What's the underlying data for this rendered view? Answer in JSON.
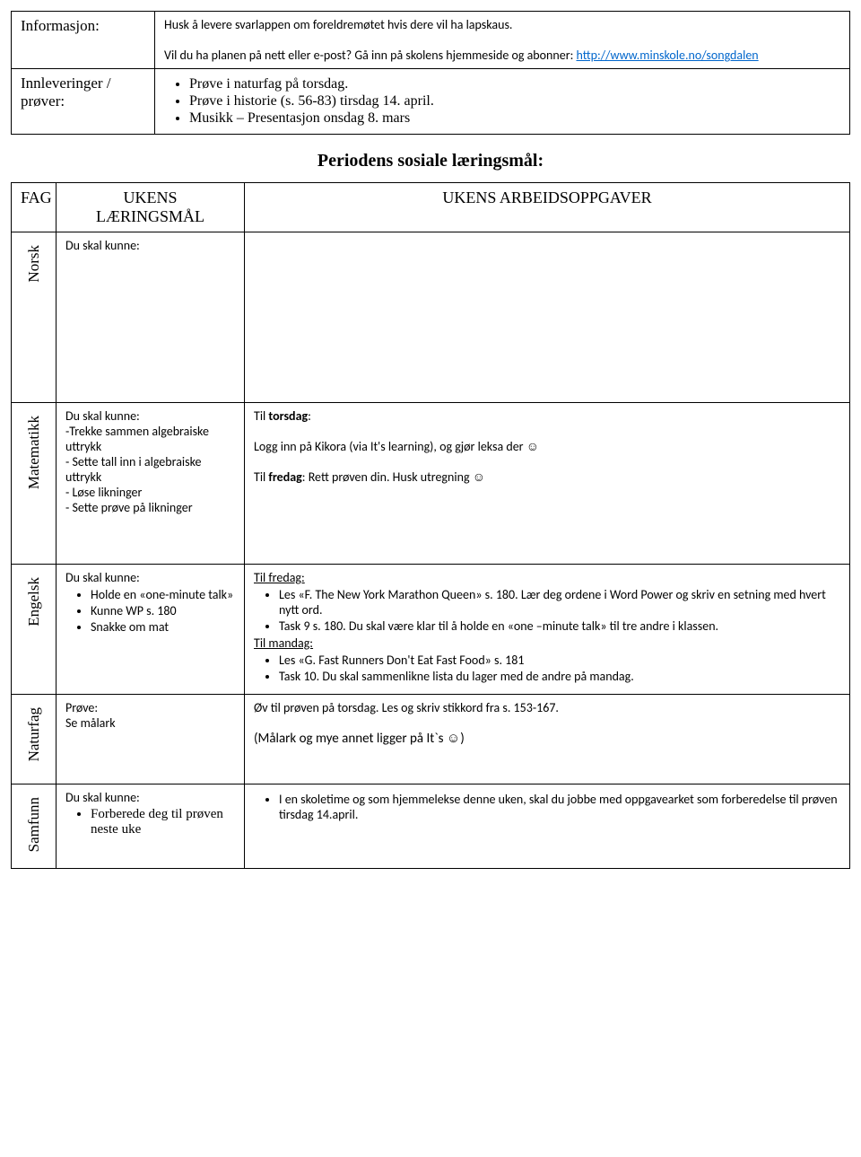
{
  "top": {
    "info_label": "Informasjon:",
    "info_line1": "Husk å levere svarlappen om foreldremøtet hvis dere vil ha lapskaus.",
    "info_line2a": "Vil du ha planen på nett eller e-post? Gå inn på skolens hjemmeside og abonner: ",
    "info_link": "http://www.minskole.no/songdalen",
    "submissions_label": "Innleveringer / prøver:",
    "subm_item1": "Prøve i naturfag på torsdag.",
    "subm_item2": "Prøve i historie (s. 56-83) tirsdag 14. april.",
    "subm_item3": "Musikk – Presentasjon onsdag 8. mars"
  },
  "section_title": "Periodens sosiale læringsmål:",
  "header": {
    "fag": "FAG",
    "goals_l1": "UKENS",
    "goals_l2": "LÆRINGSMÅL",
    "tasks": "UKENS ARBEIDSOPPGAVER"
  },
  "norsk": {
    "label": "Norsk",
    "goals": "Du skal kunne:"
  },
  "mat": {
    "label": "Matematikk",
    "g0": "Du skal kunne:",
    "g1": "-Trekke sammen algebraiske uttrykk",
    "g2": "- Sette tall inn i algebraiske uttrykk",
    "g3": "- Løse likninger",
    "g4": "- Sette prøve på likninger",
    "t1_a": "Til ",
    "t1_b": "torsdag",
    "t1_c": ":",
    "t2": "Logg inn på Kikora (via It's learning), og gjør leksa der ☺",
    "t3_a": "Til ",
    "t3_b": "fredag",
    "t3_c": ": Rett prøven din. Husk utregning ☺"
  },
  "eng": {
    "label": "Engelsk",
    "g0": "Du skal kunne:",
    "g1": "Holde en «one-minute talk»",
    "g2": "Kunne WP s. 180",
    "g3": "Snakke om mat",
    "fri": "Til fredag:",
    "f1": "Les «F. The New York Marathon Queen» s. 180. Lær deg ordene i Word Power og skriv en setning med hvert nytt ord.",
    "f2": "Task 9 s. 180. Du skal være klar til å holde en «one –minute talk» til tre andre i klassen.",
    "mon": "Til mandag:",
    "m1": "Les «G. Fast Runners Don't Eat Fast Food» s. 181",
    "m2": "Task 10. Du skal sammenlikne lista du lager med de andre på mandag."
  },
  "nat": {
    "label": "Naturfag",
    "g0": "Prøve:",
    "g1": "Se målark",
    "t1": "Øv til prøven på torsdag. Les og skriv stikkord fra s. 153-167.",
    "t2": "(Målark og mye annet ligger på It`s ☺)"
  },
  "sam": {
    "label": "Samfunn",
    "g0": "Du skal kunne:",
    "g1": "Forberede deg til prøven neste uke",
    "t1": "I en skoletime og som hjemmelekse denne uken, skal du jobbe med oppgavearket som forberedelse til prøven tirsdag 14.april."
  }
}
